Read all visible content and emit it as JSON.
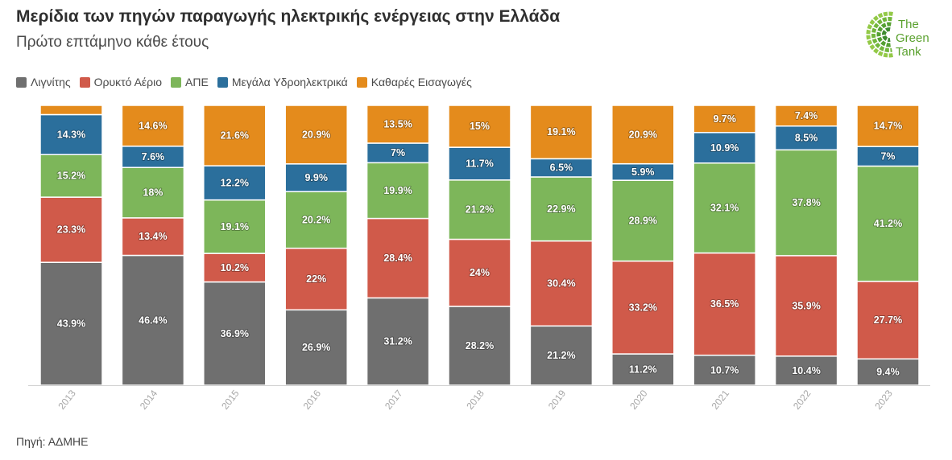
{
  "logo": {
    "lines": [
      "The",
      "Green",
      "Tank"
    ],
    "text_color": "#5aa12e",
    "tile_colors": [
      "#3d8b2f",
      "#55a032",
      "#72b63b",
      "#93c947"
    ]
  },
  "chart_data": {
    "type": "bar",
    "stacked": true,
    "title": "Μερίδια των πηγών παραγωγής ηλεκτρικής ενέργειας στην Ελλάδα",
    "subtitle": "Πρώτο επτάμηνο κάθε έτους",
    "source": "Πηγή: ΑΔΜΗΕ",
    "xlabel": "",
    "ylabel": "",
    "unit": "%",
    "ylim": [
      0,
      100
    ],
    "grid": false,
    "legend": "top-left",
    "categories": [
      "2013",
      "2014",
      "2015",
      "2016",
      "2017",
      "2018",
      "2019",
      "2020",
      "2021",
      "2022",
      "2023"
    ],
    "series": [
      {
        "name": "Λιγνίτης",
        "color": "#6f6f6f",
        "values": [
          43.9,
          46.4,
          36.9,
          26.9,
          31.2,
          28.2,
          21.2,
          11.2,
          10.7,
          10.4,
          9.4
        ]
      },
      {
        "name": "Ορυκτό Αέριο",
        "color": "#d05a4a",
        "values": [
          23.3,
          13.4,
          10.2,
          22,
          28.4,
          24,
          30.4,
          33.2,
          36.5,
          35.9,
          27.7
        ]
      },
      {
        "name": "ΑΠΕ",
        "color": "#7db65a",
        "values": [
          15.2,
          18,
          19.1,
          20.2,
          19.9,
          21.2,
          22.9,
          28.9,
          32.1,
          37.8,
          41.2
        ]
      },
      {
        "name": "Μεγάλα Υδροηλεκτρικά",
        "color": "#2b6f9c",
        "values": [
          14.3,
          7.6,
          12.2,
          9.9,
          7,
          11.7,
          6.5,
          5.9,
          10.9,
          8.5,
          7
        ]
      },
      {
        "name": "Καθαρές Εισαγωγές",
        "color": "#e48b1c",
        "values": [
          3.3,
          14.6,
          21.6,
          20.9,
          13.5,
          15,
          19.1,
          20.9,
          9.7,
          7.4,
          14.7
        ]
      }
    ]
  }
}
